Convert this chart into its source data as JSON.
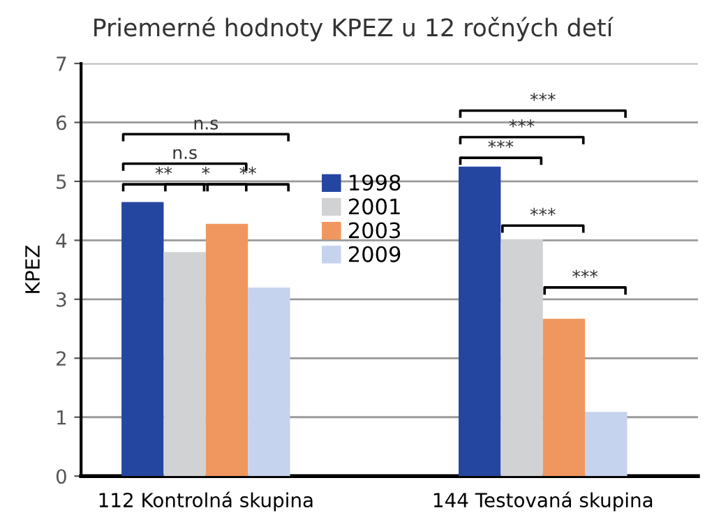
{
  "chart_data": {
    "type": "bar",
    "title": "Priemerné hodnoty KPEZ u 12 ročných detí",
    "ylabel": "KPEZ",
    "categories": [
      "112 Kontrolná skupina",
      "144 Testovaná skupina"
    ],
    "series": [
      {
        "name": "1998",
        "color": "#2446a0",
        "values": [
          4.65,
          5.25
        ]
      },
      {
        "name": "2001",
        "color": "#d1d2d3",
        "values": [
          3.8,
          4.02
        ]
      },
      {
        "name": "2003",
        "color": "#f0975f",
        "values": [
          4.28,
          2.67
        ]
      },
      {
        "name": "2009",
        "color": "#c6d3ee",
        "values": [
          3.2,
          1.09
        ]
      }
    ],
    "ylim": [
      0,
      7
    ],
    "yticks": [
      0,
      1,
      2,
      3,
      4,
      5,
      6,
      7
    ],
    "grid": "y",
    "legend": "center",
    "annotations": [
      "**",
      "*",
      "**",
      "n.s",
      "n.s",
      "***",
      "***",
      "***",
      "***",
      "***"
    ]
  }
}
